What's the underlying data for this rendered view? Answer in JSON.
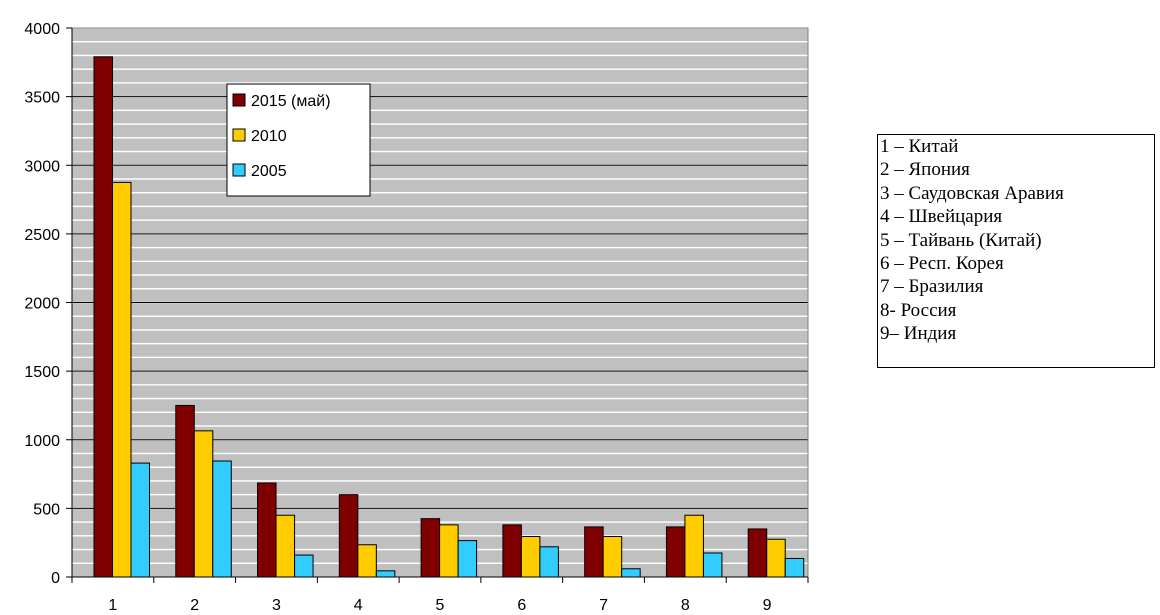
{
  "chart_data": {
    "type": "bar",
    "categories": [
      "1",
      "2",
      "3",
      "4",
      "5",
      "6",
      "7",
      "8",
      "9"
    ],
    "series": [
      {
        "name": "2015 (май)",
        "color": "#800000",
        "values": [
          3790,
          1250,
          685,
          600,
          425,
          380,
          365,
          365,
          350
        ]
      },
      {
        "name": "2010",
        "color": "#FFCC00",
        "values": [
          2875,
          1065,
          450,
          235,
          380,
          295,
          295,
          450,
          275
        ]
      },
      {
        "name": "2005",
        "color": "#33CCFF",
        "values": [
          830,
          845,
          160,
          45,
          265,
          220,
          60,
          175,
          135
        ]
      }
    ],
    "ylim": [
      0,
      4000
    ],
    "yticks": [
      "0",
      "500",
      "1000",
      "1500",
      "2000",
      "2500",
      "3000",
      "3500",
      "4000"
    ],
    "minor_grid_step": 100,
    "grid": true,
    "plot_background": "#C0C0C0",
    "legend_position": "upper-center"
  },
  "country_key": [
    "1 – Китай",
    "2 – Япония",
    "3 – Саудовская Аравия",
    "4 – Швейцария",
    "5 – Тайвань (Китай)",
    "6 – Респ. Корея",
    "7 – Бразилия",
    "8- Россия",
    "9– Индия"
  ]
}
